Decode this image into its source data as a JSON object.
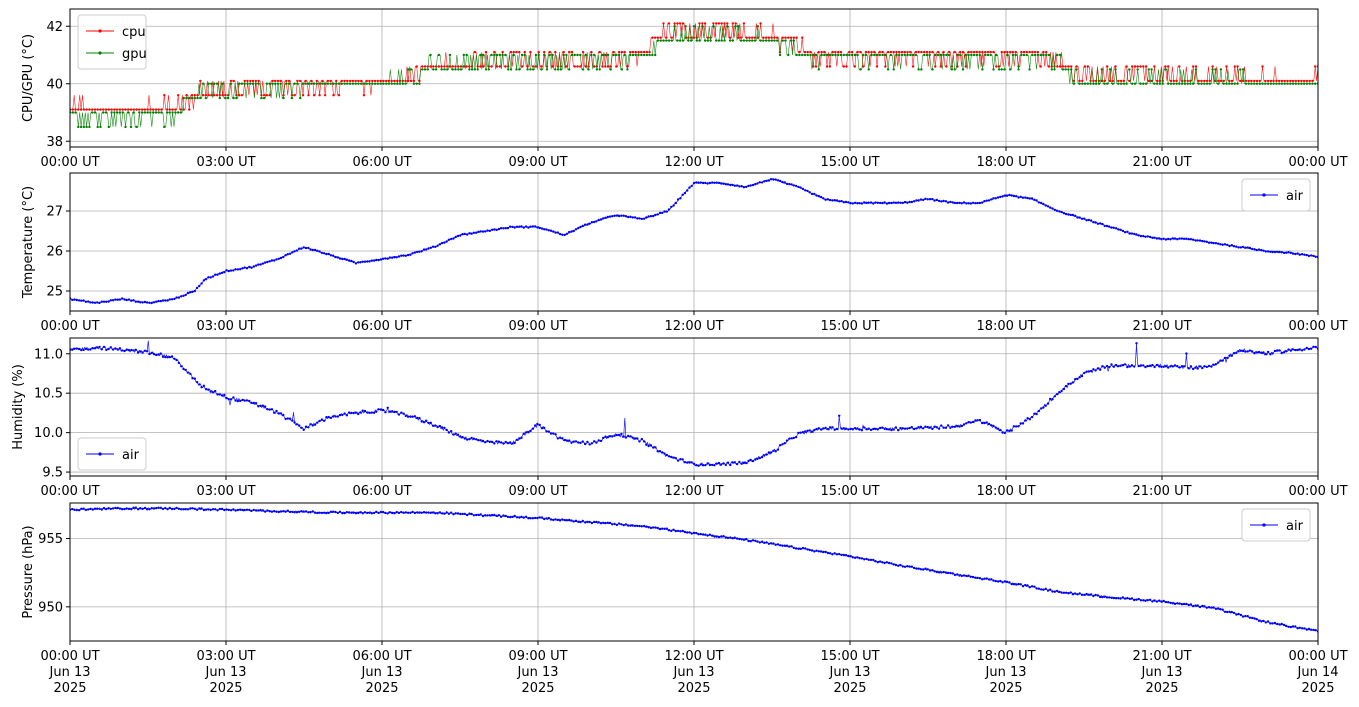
{
  "colors": {
    "cpu": "#ff0000",
    "gpu": "#008000",
    "air": "#0000ff",
    "grid": "#b0b0b0"
  },
  "x_ticks": [
    "00:00 UT",
    "03:00 UT",
    "06:00 UT",
    "09:00 UT",
    "12:00 UT",
    "15:00 UT",
    "18:00 UT",
    "21:00 UT",
    "00:00 UT"
  ],
  "x_ticks_bottom": [
    [
      "00:00 UT",
      "Jun 13",
      "2025"
    ],
    [
      "03:00 UT",
      "Jun 13",
      "2025"
    ],
    [
      "06:00 UT",
      "Jun 13",
      "2025"
    ],
    [
      "09:00 UT",
      "Jun 13",
      "2025"
    ],
    [
      "12:00 UT",
      "Jun 13",
      "2025"
    ],
    [
      "15:00 UT",
      "Jun 13",
      "2025"
    ],
    [
      "18:00 UT",
      "Jun 13",
      "2025"
    ],
    [
      "21:00 UT",
      "Jun 13",
      "2025"
    ],
    [
      "00:00 UT",
      "Jun 14",
      "2025"
    ]
  ],
  "chart_data": [
    {
      "type": "line",
      "ylabel": "CPU/GPU (°C)",
      "xlim": [
        "2025-06-13 00:00 UT",
        "2025-06-14 00:00 UT"
      ],
      "ylim": [
        37.8,
        42.6
      ],
      "yticks": [
        38,
        40,
        42
      ],
      "grid": true,
      "legend": "upper left",
      "x_hours": [
        0,
        0.5,
        1,
        1.5,
        2,
        2.4,
        2.5,
        3,
        3.5,
        4,
        4.5,
        5,
        5.5,
        6,
        6.5,
        6.9,
        7,
        7.5,
        8,
        8.5,
        9,
        9.5,
        10,
        10.5,
        11,
        11.3,
        11.5,
        12,
        12.5,
        13,
        13.5,
        14,
        14.2,
        14.5,
        15,
        15.5,
        16,
        16.5,
        17,
        17.5,
        18,
        18.5,
        19,
        19.3,
        19.5,
        20,
        20.5,
        21,
        21.5,
        22,
        22.5,
        23,
        23.5,
        24
      ],
      "series": [
        {
          "name": "cpu",
          "values": [
            39.1,
            39.0,
            38.9,
            39.0,
            39.1,
            39.2,
            39.5,
            39.6,
            39.7,
            39.8,
            39.8,
            39.8,
            39.9,
            39.9,
            40.0,
            40.4,
            40.5,
            40.5,
            40.6,
            40.6,
            40.6,
            40.7,
            40.7,
            40.8,
            40.8,
            41.5,
            41.6,
            41.7,
            41.7,
            41.6,
            41.5,
            41.2,
            40.9,
            40.8,
            40.8,
            40.8,
            40.8,
            40.8,
            40.8,
            40.8,
            40.8,
            40.8,
            40.7,
            40.3,
            40.2,
            40.1,
            40.2,
            40.2,
            40.1,
            40.1,
            40.0,
            40.0,
            40.0,
            40.0
          ]
        },
        {
          "name": "gpu",
          "values": [
            38.8,
            38.8,
            38.8,
            38.8,
            38.9,
            39.7,
            39.7,
            39.8,
            39.8,
            39.9,
            39.9,
            40.0,
            40.0,
            40.0,
            40.2,
            40.6,
            40.7,
            40.7,
            40.8,
            40.8,
            40.8,
            40.8,
            40.9,
            40.9,
            40.9,
            41.5,
            41.6,
            41.7,
            41.7,
            41.6,
            41.5,
            41.2,
            40.9,
            40.9,
            40.9,
            40.9,
            40.9,
            40.9,
            40.9,
            40.9,
            40.9,
            40.9,
            40.9,
            40.2,
            40.1,
            40.1,
            40.1,
            40.1,
            40.1,
            40.1,
            40.1,
            40.0,
            40.0,
            40.0
          ]
        }
      ]
    },
    {
      "type": "line",
      "ylabel": "Temperature (°C)",
      "xlim": [
        "2025-06-13 00:00 UT",
        "2025-06-14 00:00 UT"
      ],
      "ylim": [
        24.5,
        27.95
      ],
      "yticks": [
        25,
        26,
        27
      ],
      "grid": true,
      "legend": "upper right",
      "x_hours": [
        0,
        0.5,
        1,
        1.5,
        2,
        2.4,
        2.6,
        3,
        3.5,
        4,
        4.5,
        5,
        5.5,
        6,
        6.5,
        7,
        7.5,
        8,
        8.5,
        9,
        9.5,
        10,
        10.5,
        11,
        11.5,
        12,
        12.5,
        13,
        13.5,
        14,
        14.5,
        15,
        15.5,
        16,
        16.5,
        17,
        17.5,
        18,
        18.5,
        19,
        19.5,
        20,
        20.5,
        21,
        21.5,
        22,
        22.5,
        23,
        23.5,
        24
      ],
      "series": [
        {
          "name": "air",
          "values": [
            24.8,
            24.7,
            24.8,
            24.7,
            24.8,
            25.0,
            25.3,
            25.5,
            25.6,
            25.8,
            26.1,
            25.9,
            25.7,
            25.8,
            25.9,
            26.1,
            26.4,
            26.5,
            26.6,
            26.6,
            26.4,
            26.7,
            26.9,
            26.8,
            27.0,
            27.7,
            27.7,
            27.6,
            27.8,
            27.6,
            27.3,
            27.2,
            27.2,
            27.2,
            27.3,
            27.2,
            27.2,
            27.4,
            27.3,
            27.0,
            26.8,
            26.6,
            26.4,
            26.3,
            26.3,
            26.2,
            26.1,
            26.0,
            25.95,
            25.85
          ]
        }
      ]
    },
    {
      "type": "line",
      "ylabel": "Humidity (%)",
      "xlim": [
        "2025-06-13 00:00 UT",
        "2025-06-14 00:00 UT"
      ],
      "ylim": [
        9.45,
        11.2
      ],
      "yticks": [
        9.5,
        10.0,
        10.5,
        11.0
      ],
      "ytick_labels": [
        "9.5",
        "10.0",
        "10.5",
        "11.0"
      ],
      "grid": true,
      "legend": "lower left",
      "x_hours": [
        0,
        0.5,
        1,
        1.5,
        2,
        2.5,
        3,
        3.5,
        4,
        4.5,
        5,
        5.5,
        6,
        6.5,
        7,
        7.5,
        8,
        8.5,
        9,
        9.5,
        10,
        10.5,
        11,
        11.5,
        12,
        12.5,
        13,
        13.5,
        14,
        14.5,
        15,
        15.5,
        16,
        16.5,
        17,
        17.5,
        18,
        18.5,
        19,
        19.5,
        20,
        20.5,
        21,
        21.5,
        22,
        22.5,
        23,
        23.5,
        24
      ],
      "series": [
        {
          "name": "air",
          "values": [
            11.05,
            11.08,
            11.05,
            11.02,
            10.95,
            10.6,
            10.45,
            10.38,
            10.25,
            10.05,
            10.2,
            10.25,
            10.28,
            10.22,
            10.1,
            9.95,
            9.88,
            9.86,
            10.1,
            9.9,
            9.86,
            9.98,
            9.9,
            9.7,
            9.6,
            9.6,
            9.62,
            9.75,
            9.98,
            10.05,
            10.05,
            10.05,
            10.05,
            10.06,
            10.08,
            10.15,
            10.0,
            10.2,
            10.5,
            10.75,
            10.85,
            10.85,
            10.85,
            10.82,
            10.85,
            11.05,
            11.0,
            11.05,
            11.08
          ]
        }
      ]
    },
    {
      "type": "line",
      "ylabel": "Pressure (hPa)",
      "xlim": [
        "2025-06-13 00:00 UT",
        "2025-06-14 00:00 UT"
      ],
      "ylim": [
        947.5,
        957.6
      ],
      "yticks": [
        950,
        955
      ],
      "grid": true,
      "legend": "upper right",
      "x_hours": [
        0,
        1,
        2,
        3,
        4,
        5,
        6,
        7,
        8,
        9,
        10,
        11,
        12,
        13,
        14,
        15,
        16,
        17,
        18,
        19,
        20,
        21,
        22,
        23,
        24
      ],
      "series": [
        {
          "name": "air",
          "values": [
            957.1,
            957.2,
            957.2,
            957.1,
            957.0,
            956.9,
            956.9,
            956.9,
            956.7,
            956.5,
            956.2,
            955.9,
            955.4,
            954.9,
            954.3,
            953.7,
            953.0,
            952.4,
            951.8,
            951.1,
            950.7,
            950.4,
            949.9,
            948.9,
            948.2
          ]
        }
      ]
    }
  ]
}
